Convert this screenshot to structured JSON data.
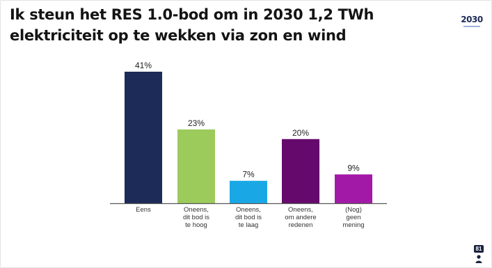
{
  "slide": {
    "title": "Ik steun het RES 1.0-bod om in 2030 1,2 TWh elektriciteit op te wekken via zon en wind",
    "logo_text": "2030",
    "participant_count": "81",
    "participant_icon": "person-icon"
  },
  "chart_data": {
    "type": "bar",
    "categories": [
      [
        "Eens"
      ],
      [
        "Oneens,",
        "dit bod is",
        "te hoog"
      ],
      [
        "Oneens,",
        "dit bod is",
        "te laag"
      ],
      [
        "Oneens,",
        "om andere",
        "redenen"
      ],
      [
        "(Nog)",
        "geen",
        "mening"
      ]
    ],
    "values": [
      41,
      23,
      7,
      20,
      9
    ],
    "value_labels": [
      "41%",
      "23%",
      "7%",
      "20%",
      "9%"
    ],
    "colors": [
      "#1c2b57",
      "#9ccb5c",
      "#1aa7e6",
      "#650a6c",
      "#a319a7"
    ],
    "unit": "%",
    "ylim": [
      0,
      41
    ],
    "grid": false,
    "legend": "none"
  }
}
